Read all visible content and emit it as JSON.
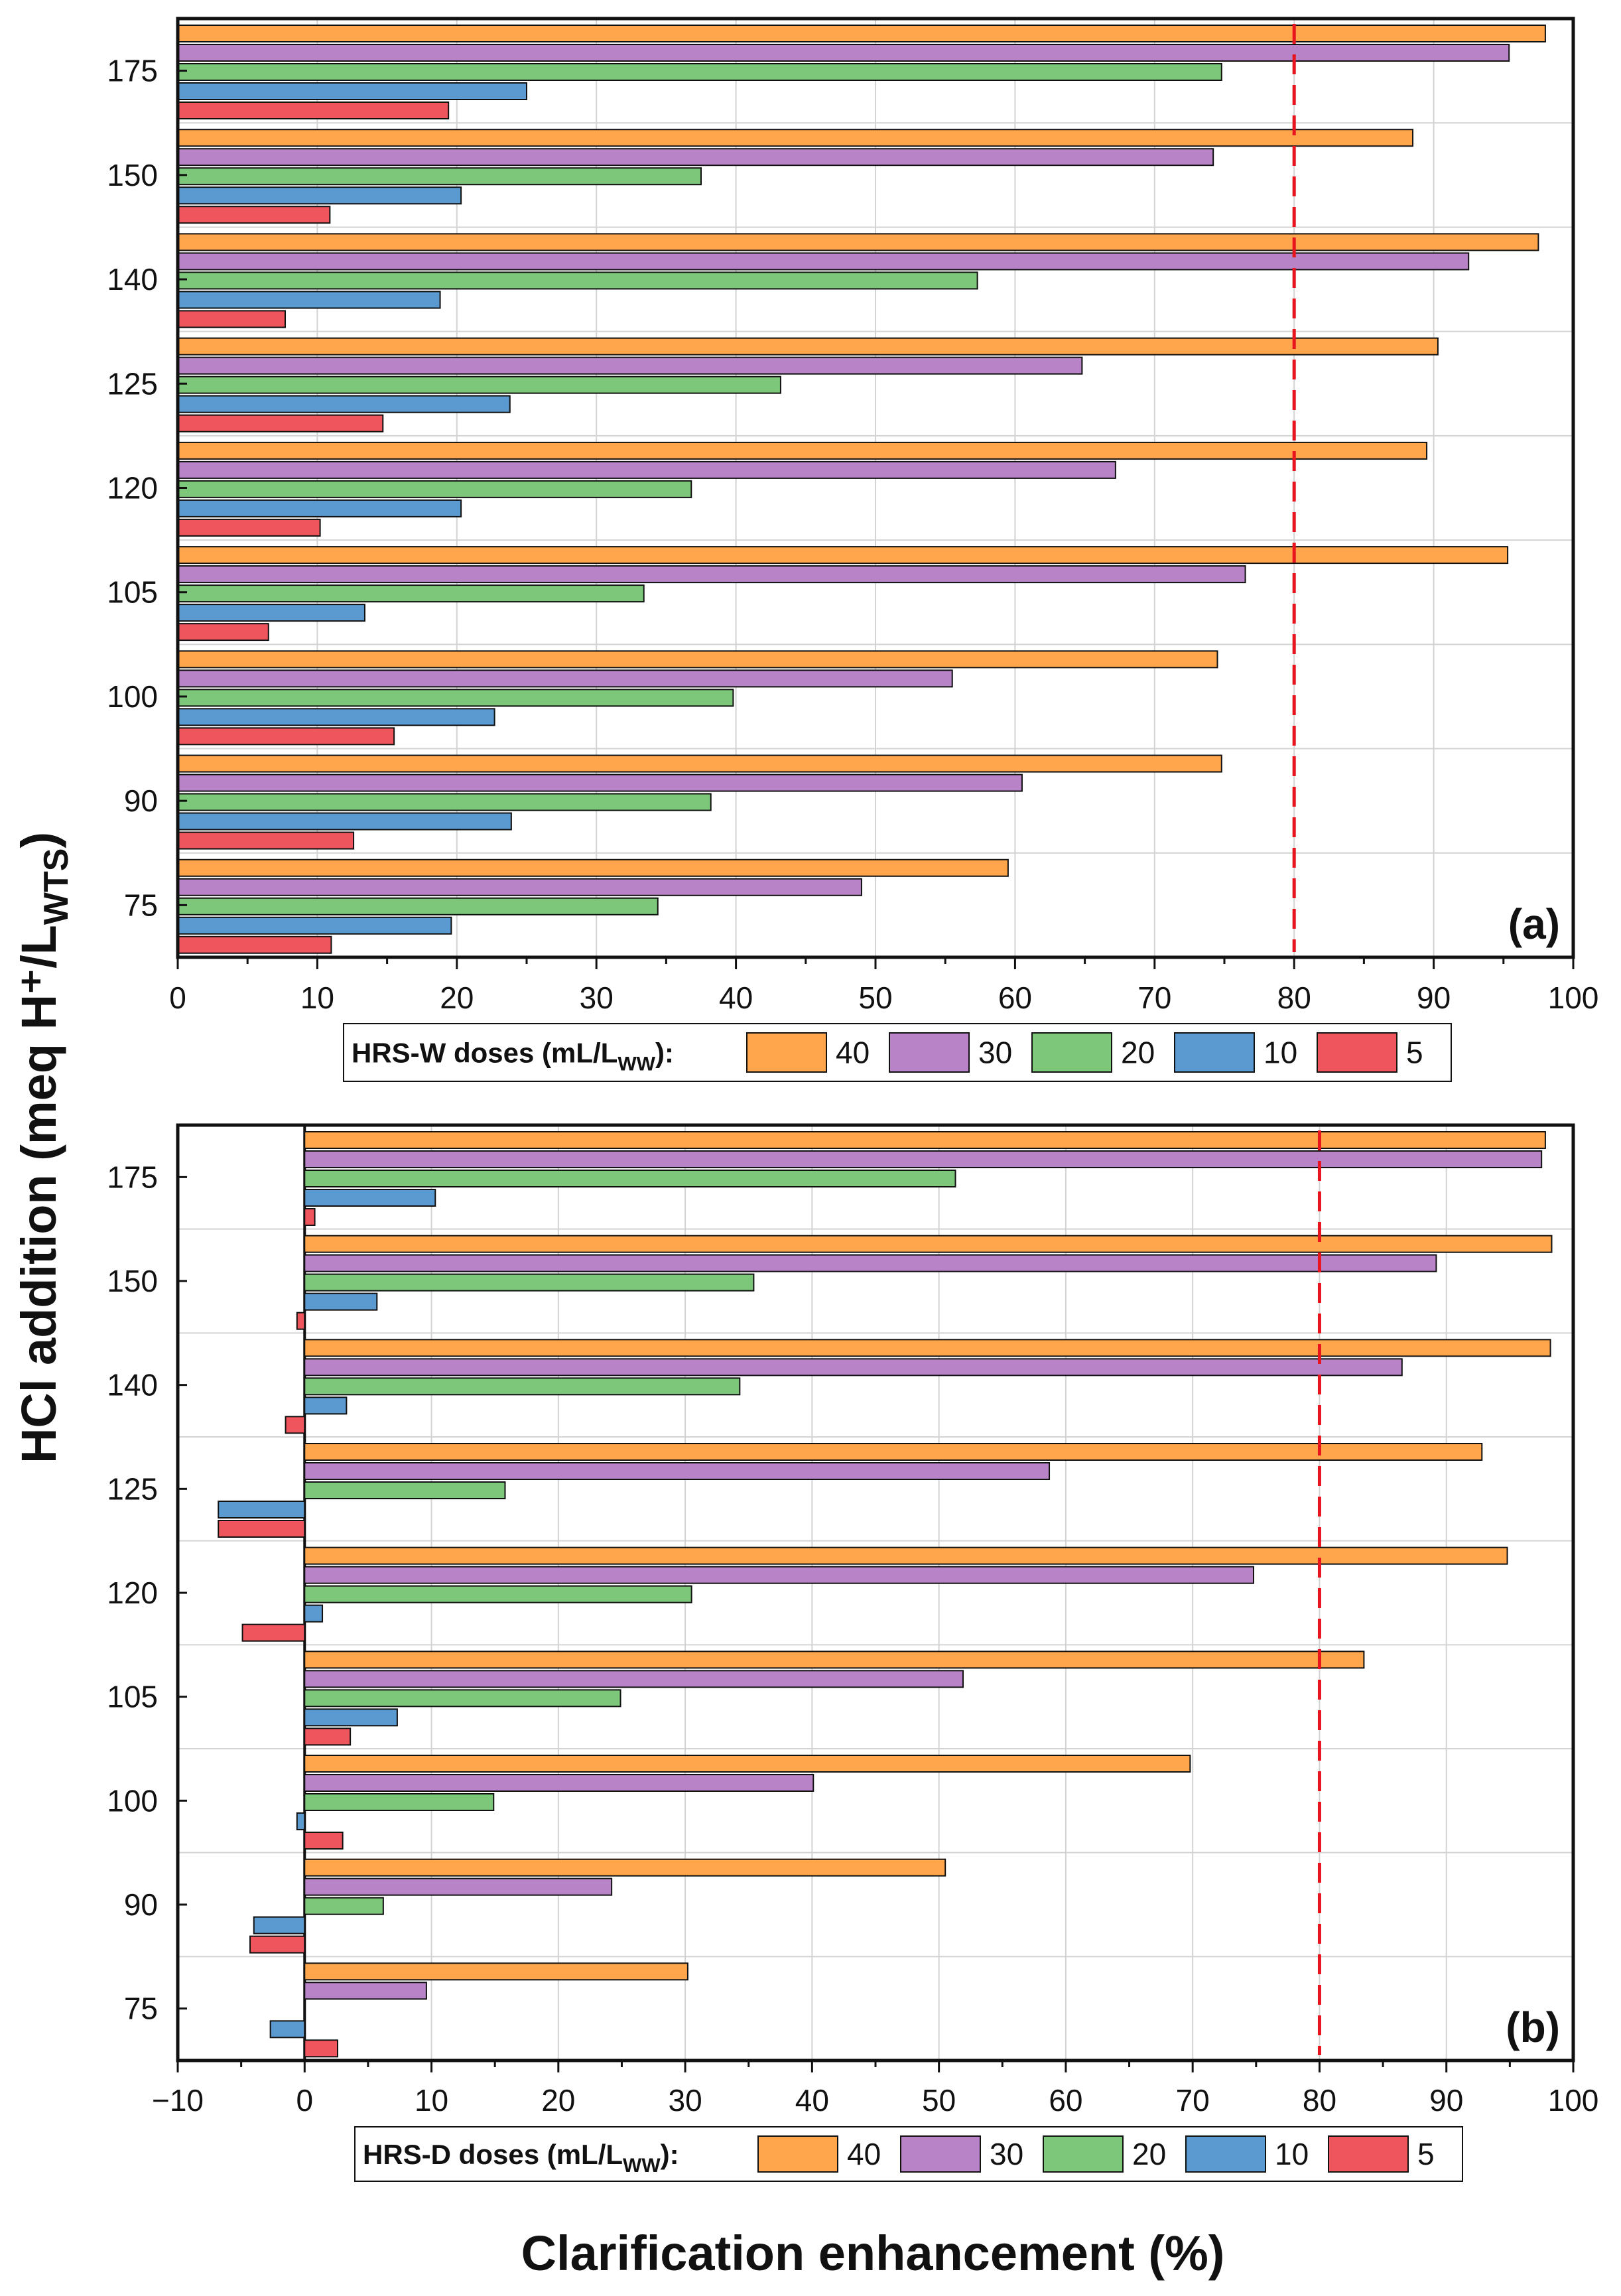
{
  "figure": {
    "ylabel": "HCl addition (meq H⁺/L",
    "ylabel_sub": "WTS",
    "ylabel_close": ")",
    "xlabel": "Clarification enhancement (%)"
  },
  "colors": {
    "40": "#FFA64D",
    "30": "#B983C8",
    "20": "#7DC77A",
    "10": "#5B9AD0",
    "5": "#EE555C",
    "threshold": "#E8141E",
    "grid": "#D3D3D3"
  },
  "chart_data": [
    {
      "type": "bar",
      "orientation": "horizontal",
      "panel_label": "(a)",
      "legend_title": "HRS-W doses (mL/L",
      "legend_title_sub": "WW",
      "legend_title_close": "):",
      "categories": [
        "175",
        "150",
        "140",
        "125",
        "120",
        "105",
        "100",
        "90",
        "75"
      ],
      "series": [
        {
          "name": "40",
          "values": [
            98,
            88.5,
            97.5,
            90.3,
            89.5,
            95.3,
            74.5,
            74.8,
            59.5
          ]
        },
        {
          "name": "30",
          "values": [
            95.4,
            74.2,
            92.5,
            64.8,
            67.2,
            76.5,
            55.5,
            60.5,
            49
          ]
        },
        {
          "name": "20",
          "values": [
            74.8,
            37.5,
            57.3,
            43.2,
            36.8,
            33.4,
            39.8,
            38.2,
            34.4
          ]
        },
        {
          "name": "10",
          "values": [
            25,
            20.3,
            18.8,
            23.8,
            20.3,
            13.4,
            22.7,
            23.9,
            19.6
          ]
        },
        {
          "name": "5",
          "values": [
            19.4,
            10.9,
            7.7,
            14.7,
            10.2,
            6.5,
            15.5,
            12.6,
            11
          ]
        }
      ],
      "xlim": [
        0,
        100
      ],
      "xticks": [
        "0",
        "10",
        "20",
        "30",
        "40",
        "50",
        "60",
        "70",
        "80",
        "90",
        "100"
      ],
      "threshold_x": 80,
      "grid": true
    },
    {
      "type": "bar",
      "orientation": "horizontal",
      "panel_label": "(b)",
      "legend_title": "HRS-D doses (mL/L",
      "legend_title_sub": "WW",
      "legend_title_close": "):",
      "categories": [
        "175",
        "150",
        "140",
        "125",
        "120",
        "105",
        "100",
        "90",
        "75"
      ],
      "series": [
        {
          "name": "40",
          "values": [
            97.8,
            98.3,
            98.2,
            92.8,
            94.8,
            83.5,
            69.8,
            50.5,
            30.2
          ]
        },
        {
          "name": "30",
          "values": [
            97.5,
            89.2,
            86.5,
            58.7,
            74.8,
            51.9,
            40.1,
            24.2,
            9.6
          ]
        },
        {
          "name": "20",
          "values": [
            51.3,
            35.4,
            34.3,
            15.8,
            30.5,
            24.9,
            14.9,
            6.2,
            0
          ]
        },
        {
          "name": "10",
          "values": [
            10.3,
            5.7,
            3.3,
            -6.8,
            1.4,
            7.3,
            -0.6,
            -4,
            -2.7
          ]
        },
        {
          "name": "5",
          "values": [
            0.8,
            -0.6,
            -1.5,
            -6.8,
            -4.9,
            3.6,
            3,
            -4.3,
            2.6
          ]
        }
      ],
      "xlim": [
        -10,
        100
      ],
      "xticks": [
        "−10",
        "0",
        "10",
        "20",
        "30",
        "40",
        "50",
        "60",
        "70",
        "80",
        "90",
        "100"
      ],
      "threshold_x": 80,
      "grid": true
    }
  ]
}
